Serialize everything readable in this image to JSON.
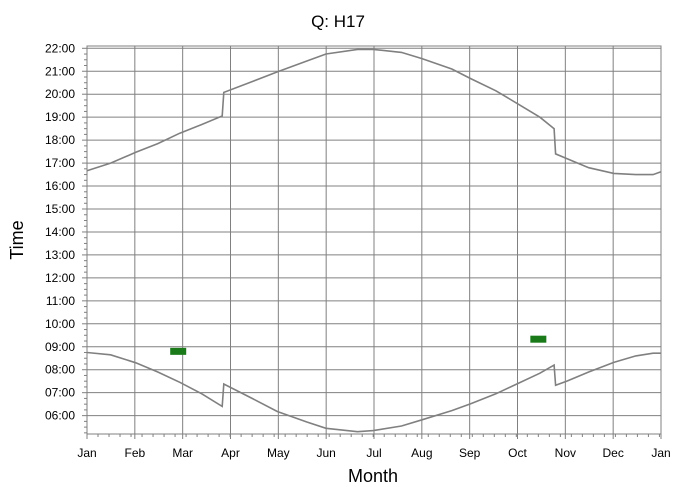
{
  "chart_data": {
    "type": "line",
    "title": "Q: H17",
    "xlabel": "Month",
    "ylabel": "Time",
    "x_tick_labels": [
      "Jan",
      "Feb",
      "Mar",
      "Apr",
      "May",
      "Jun",
      "Jul",
      "Aug",
      "Sep",
      "Oct",
      "Nov",
      "Dec",
      "Jan"
    ],
    "y_tick_labels": [
      "22:00",
      "21:00",
      "20:00",
      "19:00",
      "18:00",
      "17:00",
      "16:00",
      "15:00",
      "14:00",
      "13:00",
      "12:00",
      "11:00",
      "10:00",
      "09:00",
      "08:00",
      "07:00",
      "06:00"
    ],
    "xlim": [
      0,
      365
    ],
    "ylim_hours": [
      5.2,
      22.1
    ],
    "grid": true,
    "colors": {
      "series_line": "#808080",
      "markers": "#1a7a1a",
      "grid": "#808080"
    },
    "series": [
      {
        "x": [
          0,
          15,
          31,
          45,
          59,
          73,
          86,
          87,
          105,
          121,
          140,
          152,
          172,
          182,
          200,
          213,
          232,
          244,
          260,
          274,
          288,
          297,
          298,
          305,
          319,
          335,
          349,
          360,
          365
        ],
        "y": [
          16.67,
          17.0,
          17.47,
          17.85,
          18.3,
          18.68,
          19.05,
          20.08,
          20.55,
          20.97,
          21.45,
          21.75,
          21.95,
          21.95,
          21.82,
          21.55,
          21.1,
          20.68,
          20.15,
          19.58,
          19.0,
          18.5,
          17.4,
          17.2,
          16.8,
          16.55,
          16.5,
          16.5,
          16.62
        ]
      },
      {
        "x": [
          0,
          15,
          31,
          45,
          59,
          73,
          86,
          87,
          105,
          121,
          140,
          152,
          172,
          182,
          200,
          213,
          232,
          244,
          260,
          274,
          288,
          297,
          298,
          305,
          319,
          335,
          349,
          360,
          365
        ],
        "y": [
          8.75,
          8.65,
          8.3,
          7.9,
          7.45,
          6.95,
          6.4,
          7.38,
          6.75,
          6.18,
          5.72,
          5.45,
          5.3,
          5.35,
          5.55,
          5.82,
          6.22,
          6.52,
          6.95,
          7.4,
          7.85,
          8.2,
          7.32,
          7.5,
          7.9,
          8.32,
          8.6,
          8.72,
          8.72
        ]
      }
    ],
    "markers": [
      {
        "x": 58,
        "y": 8.8
      },
      {
        "x": 287,
        "y": 9.33
      }
    ]
  }
}
